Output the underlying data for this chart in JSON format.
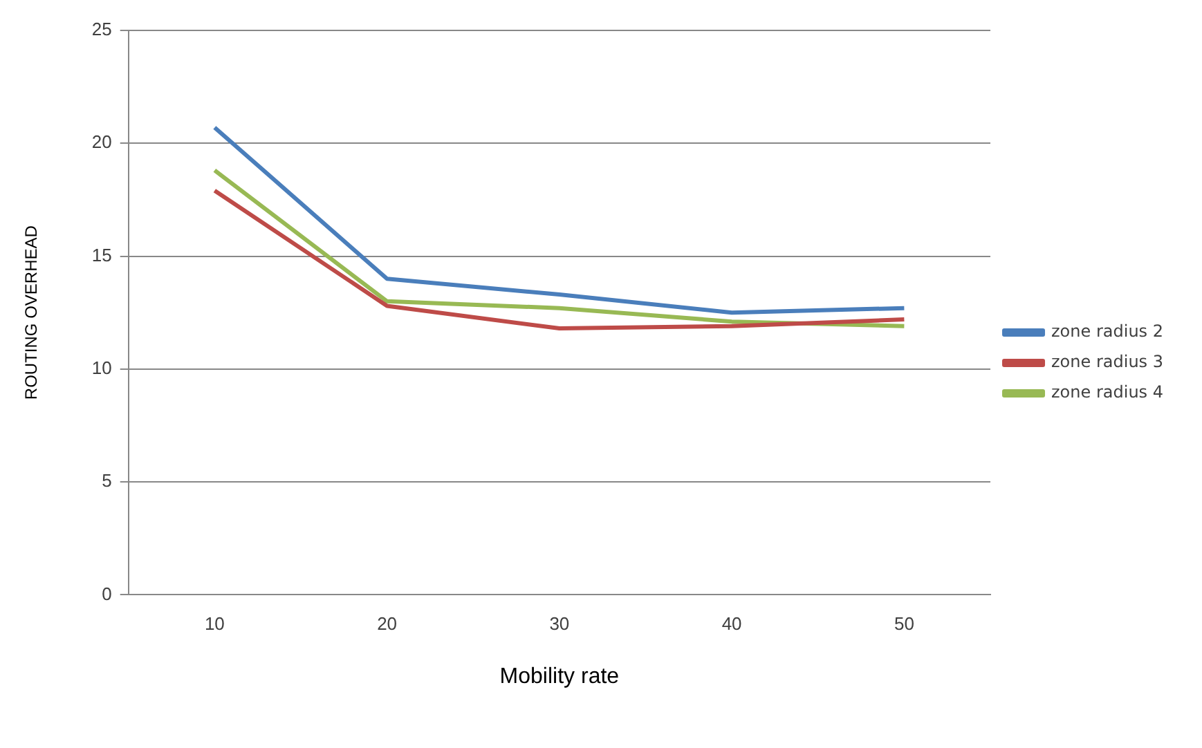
{
  "chart_data": {
    "type": "line",
    "xlabel": "Mobility rate",
    "ylabel": "ROUTING OVERHEAD",
    "categories": [
      "10",
      "20",
      "30",
      "40",
      "50"
    ],
    "series": [
      {
        "name": "zone radius 2",
        "color": "#4a7ebb",
        "values": [
          20.7,
          14.0,
          13.3,
          12.5,
          12.7
        ]
      },
      {
        "name": "zone radius 3",
        "color": "#be4b48",
        "values": [
          17.9,
          12.8,
          11.8,
          11.9,
          12.2
        ]
      },
      {
        "name": "zone radius 4",
        "color": "#98b954",
        "values": [
          18.8,
          13.0,
          12.7,
          12.1,
          11.9
        ]
      }
    ],
    "ylim": [
      0,
      25
    ],
    "yticks": [
      0,
      5,
      10,
      15,
      20,
      25
    ],
    "grid": "y",
    "legend": "right",
    "marker": "none",
    "line_style": "solid"
  }
}
